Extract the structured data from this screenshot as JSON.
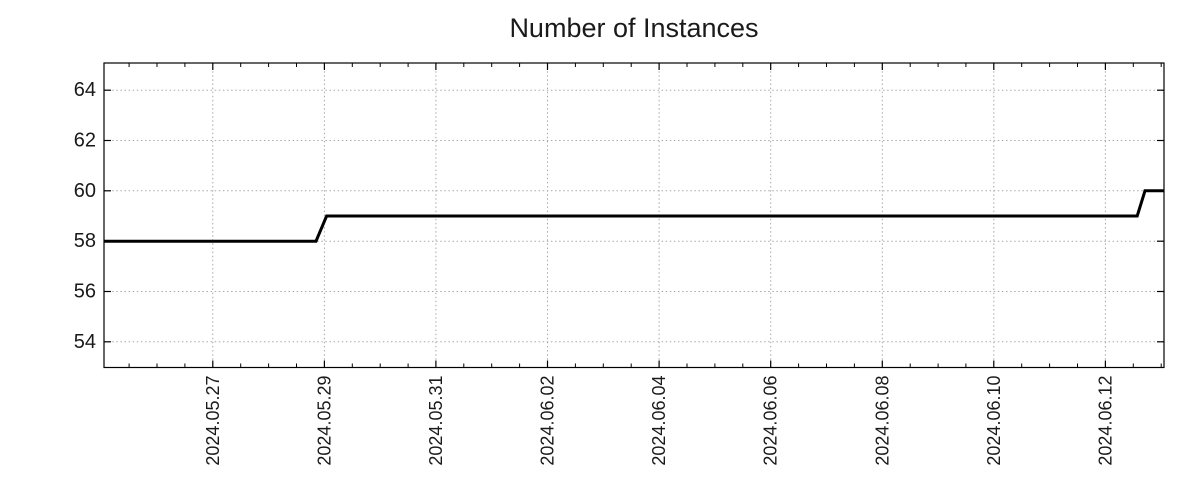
{
  "chart_data": {
    "type": "line",
    "line_style": "step",
    "title": "Number of Instances",
    "line_color": "#000000",
    "line_width": 3,
    "grid_color": "#a8a8a8",
    "axis_color": "#000000",
    "text_color": "#1a1a1a",
    "grid": "dotted",
    "legend": "none",
    "x_axis": {
      "unit": "days since 2024.05.27",
      "tick_labels": [
        "2024.05.27",
        "2024.05.29",
        "2024.05.31",
        "2024.06.02",
        "2024.06.04",
        "2024.06.06",
        "2024.06.08",
        "2024.06.10",
        "2024.06.12"
      ],
      "tick_positions_days": [
        0,
        2,
        4,
        6,
        8,
        10,
        12,
        14,
        16
      ],
      "minor_tick_interval_days": 0.5,
      "xlim_days": [
        -1.95,
        17.05
      ]
    },
    "y_axis": {
      "ticks": [
        54,
        56,
        58,
        60,
        62,
        64
      ],
      "ylim": [
        52.98,
        65.08
      ]
    },
    "series": [
      {
        "name": "instances",
        "observed_levels": [
          58,
          59,
          60
        ],
        "points": [
          [
            -1.95,
            58
          ],
          [
            1.85,
            58
          ],
          [
            2.04,
            59
          ],
          [
            16.57,
            59
          ],
          [
            16.71,
            60
          ],
          [
            17.05,
            60
          ]
        ]
      }
    ]
  }
}
